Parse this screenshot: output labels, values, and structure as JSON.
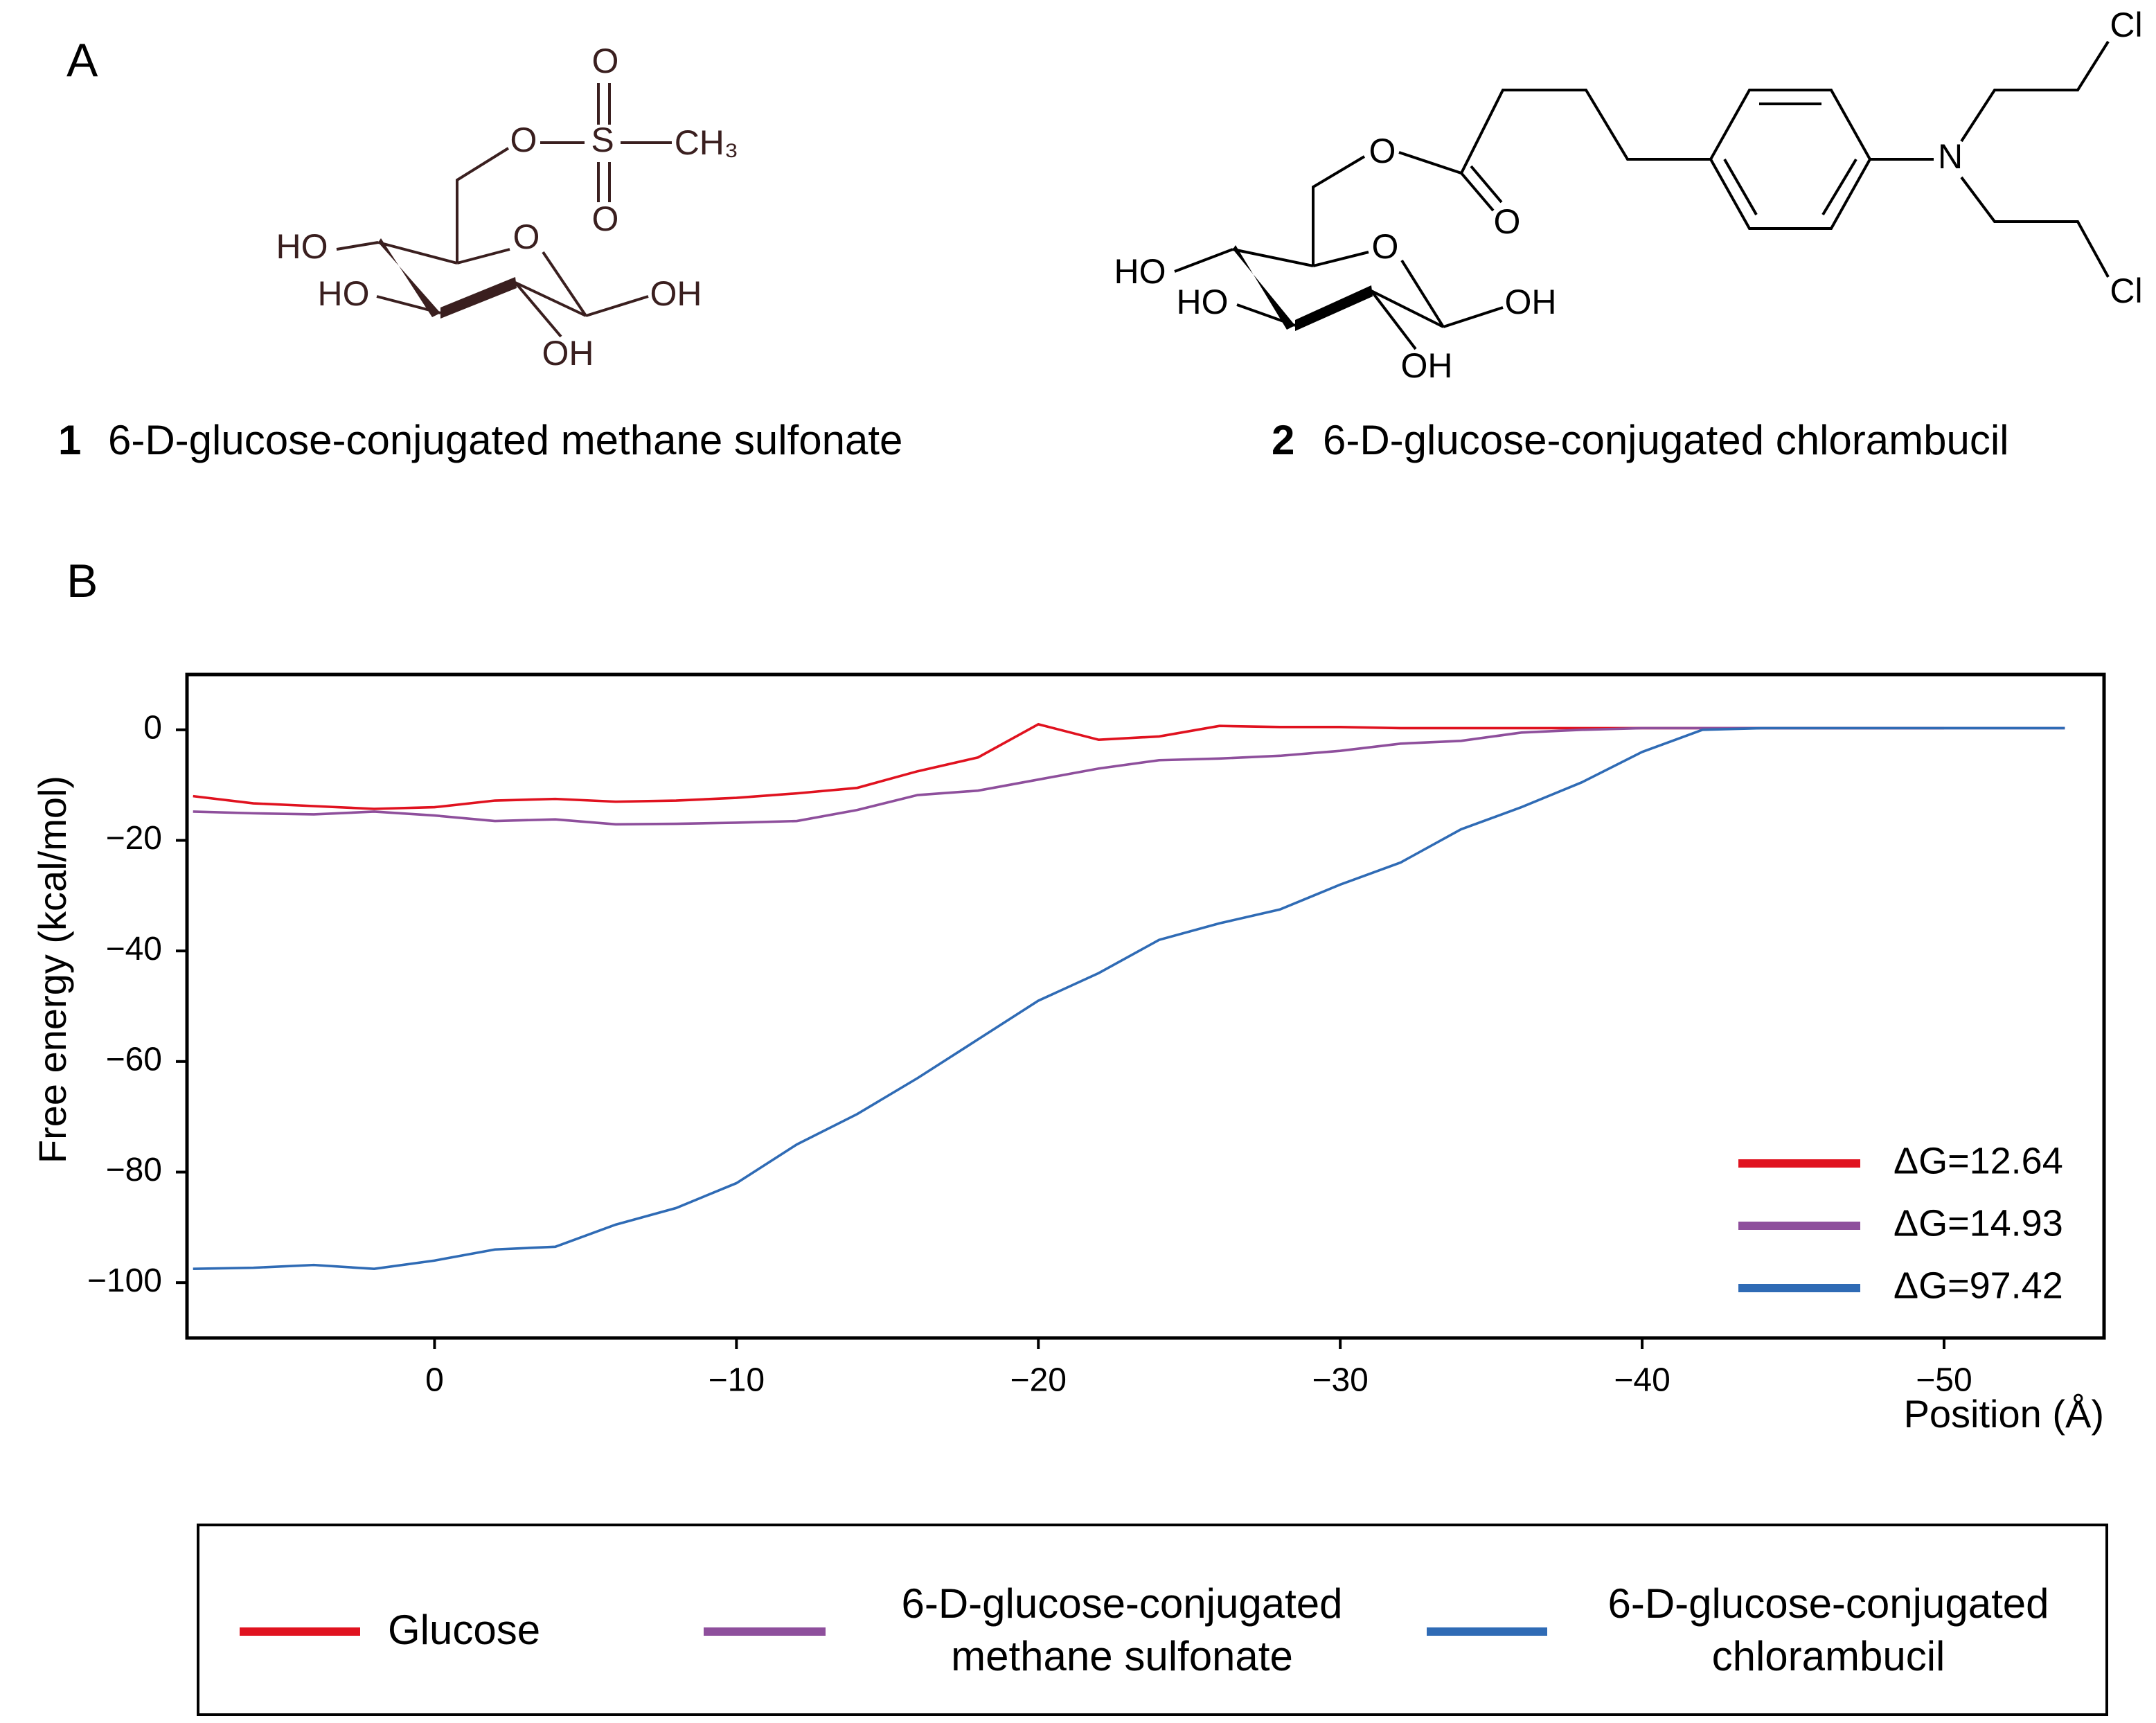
{
  "figure": {
    "panel_a": "A",
    "panel_b": "B",
    "compounds": [
      {
        "number": "1",
        "name": "6-D-glucose-conjugated methane sulfonate",
        "atoms": [
          "O",
          "S",
          "O",
          "O",
          "CH₃",
          "HO",
          "O",
          "HO",
          "OH",
          "OH"
        ]
      },
      {
        "number": "2",
        "name": "6-D-glucose-conjugated chlorambucil",
        "atoms": [
          "O",
          "O",
          "N",
          "Cl",
          "Cl",
          "HO",
          "O",
          "HO",
          "OH",
          "OH"
        ]
      }
    ]
  },
  "chart_data": {
    "type": "line",
    "xlabel": "Position (Å)",
    "ylabel": "Free energy  (kcal/mol)",
    "x": [
      8,
      6,
      4,
      2,
      0,
      -2,
      -4,
      -6,
      -8,
      -10,
      -12,
      -14,
      -16,
      -18,
      -20,
      -22,
      -24,
      -26,
      -28,
      -30,
      -32,
      -34,
      -36,
      -38,
      -40,
      -42,
      -44,
      -46,
      -48,
      -50,
      -52,
      -54
    ],
    "series": [
      {
        "name": "Glucose",
        "annotation": "ΔG=12.64",
        "color": "#e0121f",
        "values": [
          -12,
          -13.3,
          -13.8,
          -14.3,
          -14,
          -12.8,
          -12.5,
          -13,
          -12.8,
          -12.3,
          -11.5,
          -10.5,
          -7.5,
          -5,
          1,
          -1.8,
          -1.2,
          0.7,
          0.5,
          0.5,
          0.3,
          0.3,
          0.3,
          0.3,
          0.3,
          0.3,
          0.3,
          0.3,
          0.3,
          0.3,
          null,
          null
        ]
      },
      {
        "name": "6-D-glucose-conjugated methane sulfonate",
        "annotation": "ΔG=14.93",
        "color": "#8e4f9c",
        "values": [
          -14.8,
          -15.1,
          -15.3,
          -14.8,
          -15.5,
          -16.5,
          -16.2,
          -17.1,
          -17,
          -16.8,
          -16.5,
          -14.5,
          -11.8,
          -11,
          -9,
          -7,
          -5.5,
          -5.2,
          -4.7,
          -3.8,
          -2.5,
          -2,
          -0.5,
          0,
          0.3,
          0.3,
          0.3,
          0.3,
          0.3,
          0.3,
          0.3,
          0.3
        ]
      },
      {
        "name": "6-D-glucose-conjugated chlorambucil",
        "annotation": "ΔG=97.42",
        "color": "#2f6bb5",
        "values": [
          -97.5,
          -97.3,
          -96.8,
          -97.5,
          -96,
          -94,
          -93.5,
          -89.5,
          -86.5,
          -82,
          -75,
          -69.5,
          -63,
          -56,
          -49,
          -44,
          -38,
          -35,
          -32.5,
          -28,
          -24,
          -18,
          -14,
          -9.5,
          -4,
          0,
          0.3,
          0.3,
          0.3,
          0.3,
          0.3,
          0.3
        ]
      }
    ],
    "xlim": [
      8.2,
      -55.3
    ],
    "ylim": [
      -110,
      10
    ],
    "xticks": [
      0,
      {
        "value": -10,
        "label": "−10"
      },
      {
        "value": -20,
        "label": "−20"
      },
      {
        "value": -30,
        "label": "−30"
      },
      {
        "value": -40,
        "label": "−40"
      },
      {
        "value": -50,
        "label": "−50"
      }
    ],
    "yticks": [
      0,
      {
        "value": -20,
        "label": "−20"
      },
      {
        "value": -40,
        "label": "−40"
      },
      {
        "value": -60,
        "label": "−60"
      },
      {
        "value": -80,
        "label": "−80"
      },
      {
        "value": -100,
        "label": "−100"
      }
    ],
    "grid": false
  }
}
